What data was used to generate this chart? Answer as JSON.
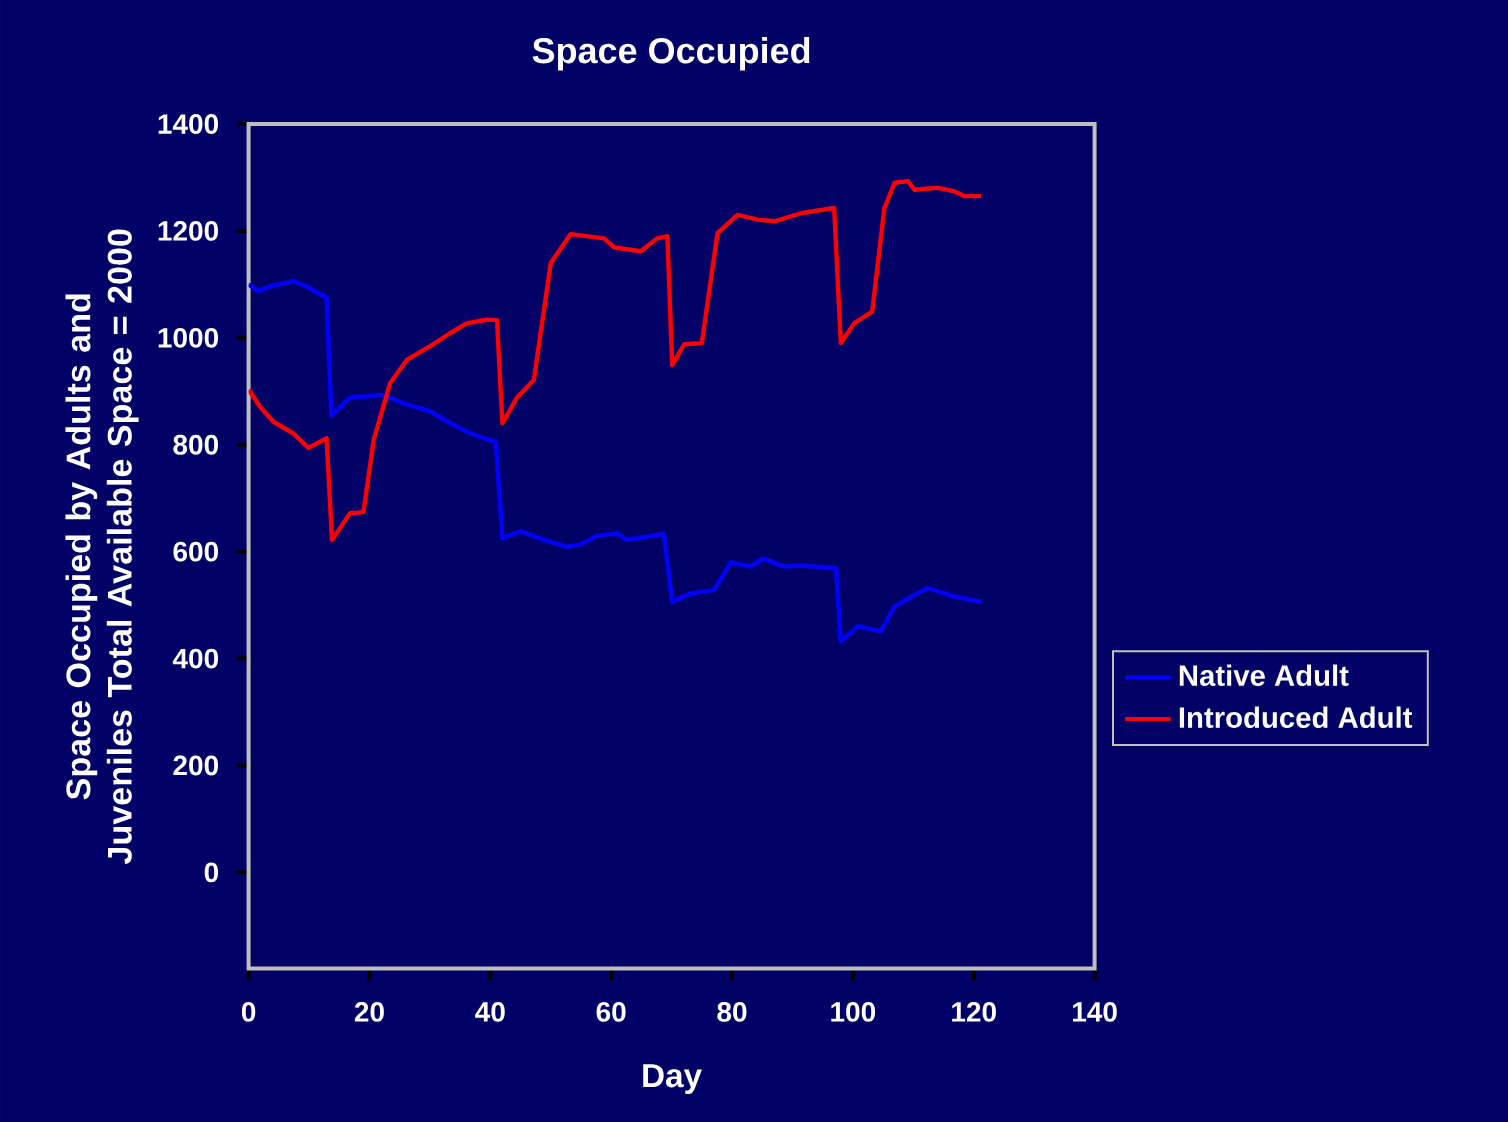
{
  "chart_data": {
    "type": "line",
    "title": "Space Occupied",
    "xlabel": "Day",
    "ylabel": "Space Occupied by Adults and Juveniles Total Available Space = 2000",
    "xlim": [
      0,
      140
    ],
    "xticks": [
      0,
      20,
      40,
      60,
      80,
      100,
      120,
      140
    ],
    "ylim": [
      -180,
      1400
    ],
    "yticks": [
      0,
      200,
      400,
      600,
      800,
      1000,
      1200,
      1400
    ],
    "grid": false,
    "legend": "right",
    "marker": "none",
    "line_style": "solid",
    "series": [
      {
        "name": "Native Adult",
        "color": "#0000ff",
        "x": [
          0,
          1.6,
          3.5,
          7.4,
          9.6,
          12.9,
          13.7,
          16.8,
          19,
          22.3,
          25.7,
          30,
          33.4,
          36.7,
          40.9,
          42,
          45,
          48.9,
          52.7,
          54.9,
          57.7,
          61,
          62.6,
          68.7,
          70.1,
          73.2,
          77,
          79.8,
          83.1,
          85.1,
          88.6,
          91.4,
          97.2,
          98,
          100.8,
          104.6,
          106.9,
          110.2,
          112.4,
          116.8,
          121.2
        ],
        "values": [
          1100,
          1087,
          1096,
          1106,
          1096,
          1075,
          855,
          888,
          890,
          893,
          877,
          863,
          840,
          821,
          805,
          625,
          638,
          622,
          609,
          613,
          630,
          634,
          622,
          633,
          506,
          522,
          528,
          580,
          572,
          587,
          572,
          574,
          569,
          432,
          460,
          451,
          497,
          519,
          532,
          516,
          506
        ]
      },
      {
        "name": "Introduced Adult",
        "color": "#ff0000",
        "x": [
          0,
          1.9,
          4.1,
          7.4,
          9.9,
          12.9,
          13.8,
          16.8,
          19,
          20.7,
          23.4,
          26.2,
          30,
          33.4,
          36.1,
          39.4,
          41.1,
          42,
          44.4,
          47.2,
          50,
          53.3,
          58.8,
          60.5,
          64.9,
          67.6,
          69.3,
          70.1,
          72.1,
          75,
          77.6,
          80.9,
          84.2,
          87,
          91.4,
          96.9,
          98,
          100.2,
          103.2,
          105.2,
          106.9,
          109.1,
          110.2,
          114,
          116.8,
          118.5,
          121.2
        ],
        "values": [
          903,
          871,
          843,
          821,
          794,
          812,
          622,
          672,
          674,
          809,
          915,
          959,
          984,
          1009,
          1027,
          1034,
          1033,
          840,
          888,
          921,
          1140,
          1194,
          1186,
          1169,
          1162,
          1186,
          1190,
          949,
          988,
          990,
          1196,
          1230,
          1221,
          1218,
          1233,
          1243,
          990,
          1027,
          1049,
          1242,
          1290,
          1293,
          1277,
          1281,
          1274,
          1265,
          1265
        ]
      }
    ]
  }
}
